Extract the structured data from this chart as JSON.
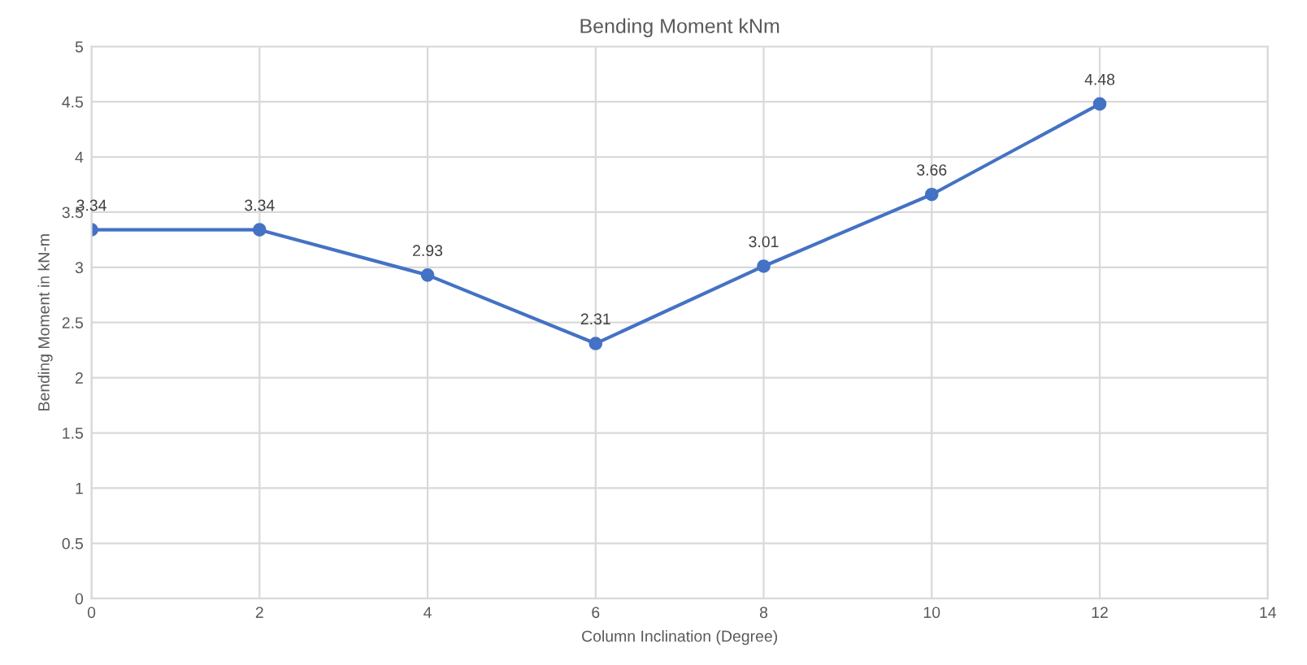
{
  "chart_data": {
    "type": "line",
    "title": "Bending Moment kNm",
    "xlabel": "Column Inclination (Degree)",
    "ylabel": "Bending Moment in kN-m",
    "x": [
      0,
      2,
      4,
      6,
      8,
      10,
      12
    ],
    "series": [
      {
        "color": "#4472c4",
        "values": [
          3.34,
          3.34,
          2.93,
          2.31,
          3.01,
          3.66,
          4.48
        ]
      }
    ],
    "xlim": [
      0,
      14
    ],
    "xticks": [
      0,
      2,
      4,
      6,
      8,
      10,
      12,
      14
    ],
    "ylim": [
      0,
      5
    ],
    "yticks": [
      0,
      0.5,
      1,
      1.5,
      2,
      2.5,
      3,
      3.5,
      4,
      4.5,
      5
    ],
    "grid": true,
    "marker": "circle",
    "line_style": "solid",
    "data_labels": true
  }
}
